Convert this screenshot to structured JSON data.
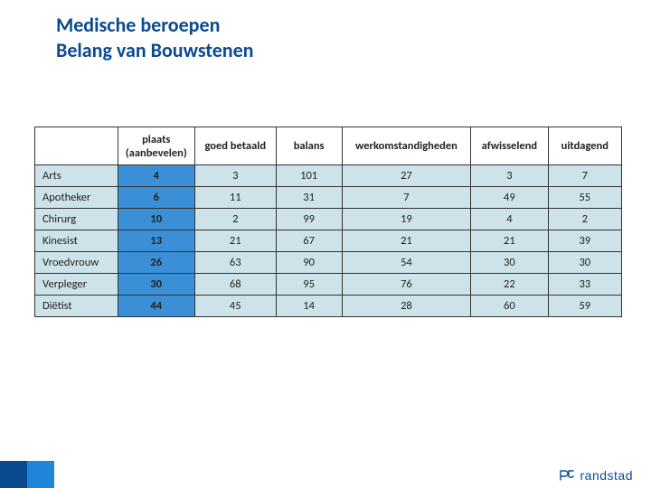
{
  "title": {
    "line1": "Medische beroepen",
    "line2": "Belang van Bouwstenen",
    "color": "#0a4a8f"
  },
  "table": {
    "columns": [
      "plaats (aanbevelen)",
      "goed betaald",
      "balans",
      "werkomstandigheden",
      "afwisselend",
      "uitdagend"
    ],
    "highlight_col_index": 0,
    "highlight_bg": "#3a8fd6",
    "cell_bg": "#cde2e9",
    "border_color": "#333333",
    "rows": [
      {
        "label": "Arts",
        "values": [
          4,
          3,
          101,
          27,
          3,
          7
        ]
      },
      {
        "label": "Apotheker",
        "values": [
          6,
          11,
          31,
          7,
          49,
          55
        ]
      },
      {
        "label": "Chirurg",
        "values": [
          10,
          2,
          99,
          19,
          4,
          2
        ]
      },
      {
        "label": "Kinesist",
        "values": [
          13,
          21,
          67,
          21,
          21,
          39
        ]
      },
      {
        "label": "Vroedvrouw",
        "values": [
          26,
          63,
          90,
          54,
          30,
          30
        ]
      },
      {
        "label": "Verpleger",
        "values": [
          30,
          68,
          95,
          76,
          22,
          33
        ]
      },
      {
        "label": "Diëtist",
        "values": [
          44,
          45,
          14,
          28,
          60,
          59
        ]
      }
    ]
  },
  "footer": {
    "brand": "randstad",
    "square1_color": "#0a4a8f",
    "square2_color": "#1d86d6",
    "logo_color": "#0a4a8f"
  }
}
